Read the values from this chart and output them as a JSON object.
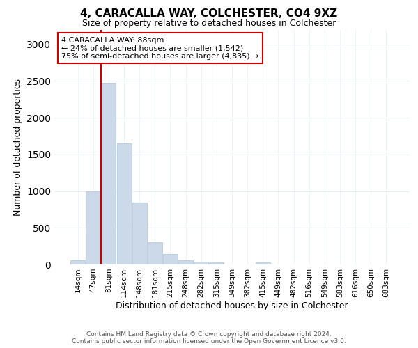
{
  "title": "4, CARACALLA WAY, COLCHESTER, CO4 9XZ",
  "subtitle": "Size of property relative to detached houses in Colchester",
  "xlabel": "Distribution of detached houses by size in Colchester",
  "ylabel": "Number of detached properties",
  "bar_color": "#ccd9e8",
  "bar_edge_color": "#b0c4d8",
  "highlight_line_color": "#cc0000",
  "annotation_line1": "4 CARACALLA WAY: 88sqm",
  "annotation_line2": "← 24% of detached houses are smaller (1,542)",
  "annotation_line3": "75% of semi-detached houses are larger (4,835) →",
  "annotation_box_color": "white",
  "annotation_box_edge": "#cc0000",
  "categories": [
    "14sqm",
    "47sqm",
    "81sqm",
    "114sqm",
    "148sqm",
    "181sqm",
    "215sqm",
    "248sqm",
    "282sqm",
    "315sqm",
    "349sqm",
    "382sqm",
    "415sqm",
    "449sqm",
    "482sqm",
    "516sqm",
    "549sqm",
    "583sqm",
    "616sqm",
    "650sqm",
    "683sqm"
  ],
  "values": [
    55,
    1000,
    2470,
    1650,
    840,
    300,
    145,
    55,
    35,
    25,
    0,
    0,
    30,
    0,
    0,
    0,
    0,
    0,
    0,
    0,
    0
  ],
  "ylim": [
    0,
    3200
  ],
  "yticks": [
    0,
    500,
    1000,
    1500,
    2000,
    2500,
    3000
  ],
  "footer_line1": "Contains HM Land Registry data © Crown copyright and database right 2024.",
  "footer_line2": "Contains public sector information licensed under the Open Government Licence v3.0.",
  "background_color": "#ffffff",
  "plot_bg_color": "#ffffff",
  "grid_color": "#e8eef4"
}
